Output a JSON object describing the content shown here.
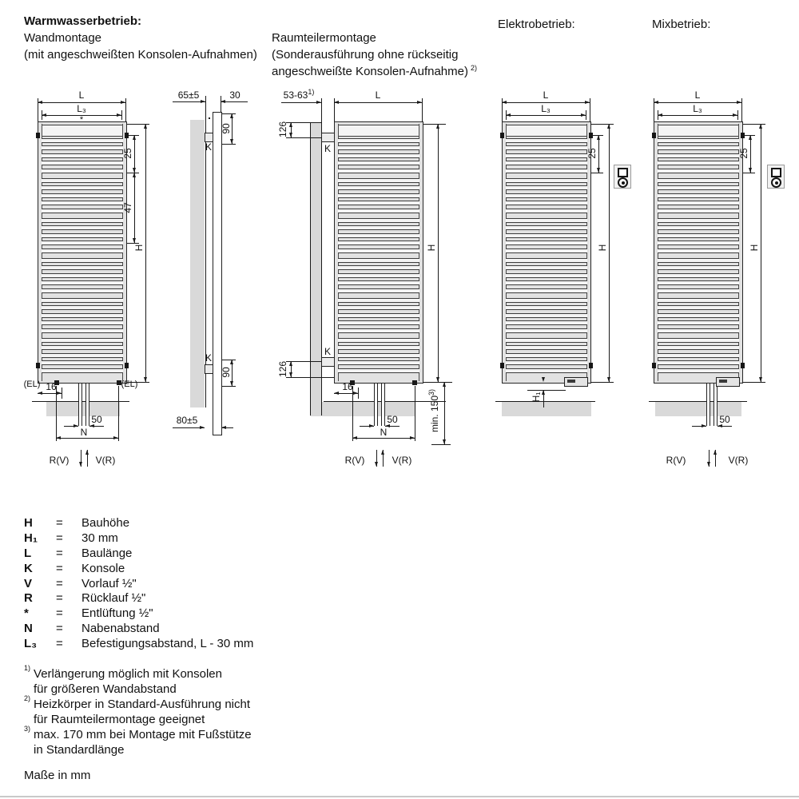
{
  "headers": {
    "warmwasser_title": "Warmwasserbetrieb:",
    "warmwasser_sub1": "Wandmontage",
    "warmwasser_sub2": "(mit angeschweißten Konsolen-Aufnahmen)",
    "raumteiler_line1": "Raumteilermontage",
    "raumteiler_line2": "(Sonderausführung ohne rückseitig",
    "raumteiler_line3": "angeschweißte Konsolen-Aufnahme)",
    "raumteiler_sup": "2)",
    "elektro_title": "Elektrobetrieb:",
    "mix_title": "Mixbetrieb:"
  },
  "wand_front": {
    "L": "L",
    "L3": "L₃",
    "vent": "*",
    "d25": "25",
    "d47": "47",
    "H": "H",
    "el_left": "(EL)",
    "el_right": "(EL)",
    "d16": "16",
    "d50": "50",
    "N": "N",
    "return_label": "R(V)",
    "supply_label": "V(R)"
  },
  "side": {
    "d65": "65±5",
    "d30": "30",
    "d90_top": "90",
    "K_top": "K",
    "d90_bottom": "90",
    "K_bottom": "K",
    "d80": "80±5"
  },
  "raumteiler_front": {
    "d53_63": "53-63",
    "d53_63_sup": "1)",
    "L": "L",
    "d126_top": "126",
    "K_top": "K",
    "H": "H",
    "d126_bottom": "126",
    "K_bottom": "K",
    "d16": "16",
    "d50": "50",
    "N": "N",
    "min150": "min. 150",
    "min150_sup": "3)",
    "return_label": "R(V)",
    "supply_label": "V(R)"
  },
  "elektro_front": {
    "L": "L",
    "L3": "L₃",
    "d25": "25",
    "H": "H",
    "H1": "H₁"
  },
  "mix_front": {
    "L": "L",
    "L3": "L₃",
    "d25": "25",
    "H": "H",
    "d50": "50",
    "return_label": "R(V)",
    "supply_label": "V(R)"
  },
  "legend": {
    "rows": [
      {
        "sym": "H",
        "eq": "=",
        "def": "Bauhöhe"
      },
      {
        "sym": "H₁",
        "eq": "=",
        "def": "30 mm"
      },
      {
        "sym": "L",
        "eq": "=",
        "def": "Baulänge"
      },
      {
        "sym": "K",
        "eq": "=",
        "def": "Konsole"
      },
      {
        "sym": "V",
        "eq": "=",
        "def": "Vorlauf ½\""
      },
      {
        "sym": "R",
        "eq": "=",
        "def": "Rücklauf ½\""
      },
      {
        "sym": "*",
        "eq": "=",
        "def": "Entlüftung ½\""
      },
      {
        "sym": "N",
        "eq": "=",
        "def": "Nabenabstand"
      },
      {
        "sym": "L₃",
        "eq": "=",
        "def": "Befestigungsabstand, L - 30 mm"
      }
    ]
  },
  "footnotes": [
    {
      "marker": "1)",
      "line1": "Verlängerung möglich mit Konsolen",
      "line2": "für größeren Wandabstand"
    },
    {
      "marker": "2)",
      "line1": "Heizkörper in Standard-Ausführung nicht",
      "line2": "für Raumteilermontage geeignet"
    },
    {
      "marker": "3)",
      "line1": "max. 170 mm bei Montage mit Fußstütze",
      "line2": "in Standardlänge"
    }
  ],
  "units_note": "Maße in mm",
  "colors": {
    "line": "#1a1a1a",
    "shade": "#d9d9d9",
    "radiator_fill": "#e2e2e2",
    "tube_fill": "#f4f4f4"
  }
}
